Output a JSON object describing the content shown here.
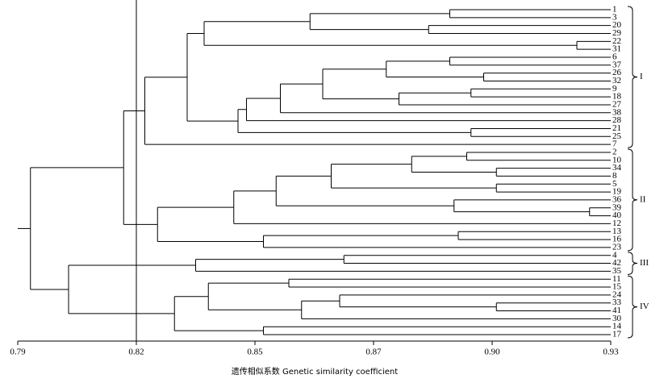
{
  "chart_data": {
    "type": "dendrogram",
    "xlabel": "遗传相似系数  Genetic similarity coefficient",
    "xlim": [
      0.79,
      0.93
    ],
    "xticks": [
      0.79,
      {
        "value": 0.818,
        "label": "0.82"
      },
      {
        "value": 0.846,
        "label": "0.85"
      },
      {
        "value": 0.874,
        "label": "0.87"
      },
      {
        "value": 0.902,
        "label": "0.90"
      },
      0.93
    ],
    "cutoff": 0.818,
    "color": "#000000",
    "tree": {
      "height": 0.793,
      "children": [
        {
          "height": 0.815,
          "children": [
            {
              "height": 0.82,
              "cluster": "I",
              "children": [
                {
                  "height": 0.83,
                  "children": [
                    {
                      "height": 0.834,
                      "children": [
                        {
                          "height": 0.859,
                          "children": [
                            {
                              "height": 0.892,
                              "children": [
                                "1",
                                "3"
                              ]
                            },
                            {
                              "height": 0.887,
                              "children": [
                                "20",
                                "29"
                              ]
                            }
                          ]
                        },
                        {
                          "height": 0.922,
                          "children": [
                            "22",
                            "31"
                          ]
                        }
                      ]
                    },
                    {
                      "height": 0.842,
                      "children": [
                        {
                          "height": 0.844,
                          "children": [
                            {
                              "height": 0.852,
                              "children": [
                                {
                                  "height": 0.862,
                                  "children": [
                                    {
                                      "height": 0.877,
                                      "children": [
                                        {
                                          "height": 0.892,
                                          "children": [
                                            "6",
                                            "37"
                                          ]
                                        },
                                        {
                                          "height": 0.9,
                                          "children": [
                                            "26",
                                            "32"
                                          ]
                                        }
                                      ]
                                    },
                                    {
                                      "height": 0.88,
                                      "children": [
                                        {
                                          "height": 0.897,
                                          "children": [
                                            "9",
                                            "18"
                                          ]
                                        },
                                        "27"
                                      ]
                                    }
                                  ]
                                },
                                "38"
                              ]
                            },
                            "28"
                          ]
                        },
                        {
                          "height": 0.897,
                          "children": [
                            "21",
                            "25"
                          ]
                        }
                      ]
                    }
                  ]
                },
                "7"
              ]
            },
            {
              "height": 0.823,
              "cluster": "II",
              "children": [
                {
                  "height": 0.841,
                  "children": [
                    {
                      "height": 0.851,
                      "children": [
                        {
                          "height": 0.864,
                          "children": [
                            {
                              "height": 0.883,
                              "children": [
                                {
                                  "height": 0.896,
                                  "children": [
                                    "2",
                                    "10"
                                  ]
                                },
                                {
                                  "height": 0.903,
                                  "children": [
                                    "34",
                                    "8"
                                  ]
                                }
                              ]
                            },
                            {
                              "height": 0.903,
                              "children": [
                                "5",
                                "19"
                              ]
                            }
                          ]
                        },
                        {
                          "height": 0.893,
                          "children": [
                            "36",
                            {
                              "height": 0.925,
                              "children": [
                                "39",
                                "40"
                              ]
                            }
                          ]
                        }
                      ]
                    },
                    "12"
                  ]
                },
                {
                  "height": 0.848,
                  "children": [
                    {
                      "height": 0.894,
                      "children": [
                        "13",
                        "16"
                      ]
                    },
                    "23"
                  ]
                }
              ]
            }
          ]
        },
        {
          "height": 0.802,
          "children": [
            {
              "height": 0.832,
              "cluster": "III",
              "children": [
                {
                  "height": 0.867,
                  "children": [
                    "4",
                    "42"
                  ]
                },
                "35"
              ]
            },
            {
              "height": 0.827,
              "cluster": "IV",
              "children": [
                {
                  "height": 0.835,
                  "children": [
                    {
                      "height": 0.854,
                      "children": [
                        "11",
                        "15"
                      ]
                    },
                    {
                      "height": 0.857,
                      "children": [
                        {
                          "height": 0.866,
                          "children": [
                            "24",
                            {
                              "height": 0.903,
                              "children": [
                                "33",
                                "41"
                              ]
                            }
                          ]
                        },
                        "30"
                      ]
                    }
                  ]
                },
                {
                  "height": 0.848,
                  "children": [
                    "14",
                    "17"
                  ]
                }
              ]
            }
          ]
        }
      ]
    }
  }
}
